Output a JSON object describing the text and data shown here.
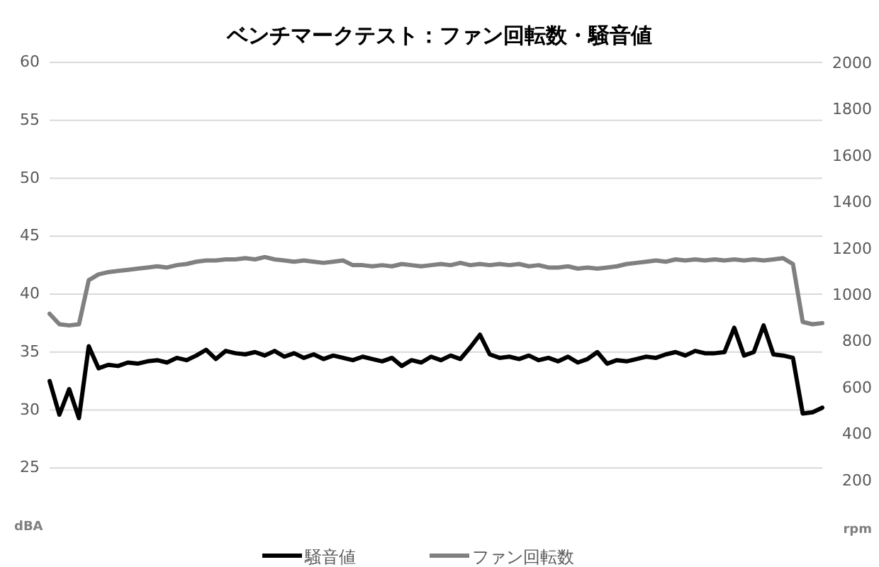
{
  "chart_data": {
    "type": "line",
    "title": "ベンチマークテスト：ファン回転数・騒音値",
    "categories": [
      null,
      null,
      null,
      null,
      null,
      null,
      null,
      null,
      null,
      null,
      null,
      null,
      null,
      null,
      null,
      null,
      null,
      null,
      null,
      null,
      null,
      null,
      null,
      null,
      null,
      null,
      null,
      null,
      null,
      null,
      null,
      null,
      null,
      null,
      null,
      null,
      null,
      null,
      null,
      null,
      null,
      null,
      null,
      null,
      null,
      null,
      null,
      null,
      null,
      null,
      null,
      null,
      null,
      null,
      null,
      null,
      null,
      null,
      null,
      null,
      null,
      null,
      null,
      null,
      null,
      null,
      null,
      null,
      null,
      null,
      null,
      null,
      null,
      null,
      null,
      null,
      null,
      null,
      null,
      null
    ],
    "ylim": [
      20,
      60
    ],
    "yticks": [
      {
        "value": 20,
        "label": "dBA"
      },
      25,
      30,
      35,
      40,
      45,
      50,
      55,
      60
    ],
    "y2lim": [
      0,
      2000
    ],
    "y2ticks": [
      {
        "value": 0,
        "label": "rpm"
      },
      200,
      400,
      600,
      800,
      1000,
      1200,
      1400,
      1600,
      1800,
      2000
    ],
    "grid": "y",
    "legend": "bottom",
    "marker": "none",
    "line_style": "solid",
    "series": [
      {
        "name": "騒音値",
        "color": "#000000",
        "values": [
          32.5,
          29.6,
          31.8,
          29.3,
          35.5,
          33.6,
          33.9,
          33.8,
          34.1,
          34.0,
          34.2,
          34.3,
          34.1,
          34.5,
          34.3,
          34.7,
          35.2,
          34.4,
          35.1,
          34.9,
          34.8,
          35.0,
          34.7,
          35.1,
          34.6,
          34.9,
          34.5,
          34.8,
          34.4,
          34.7,
          34.5,
          34.3,
          34.6,
          34.4,
          34.2,
          34.5,
          33.8,
          34.3,
          34.1,
          34.6,
          34.3,
          34.7,
          34.4,
          35.4,
          36.5,
          34.8,
          34.5,
          34.6,
          34.4,
          34.7,
          34.3,
          34.5,
          34.2,
          34.6,
          34.1,
          34.4,
          35.0,
          34.0,
          34.3,
          34.2,
          34.4,
          34.6,
          34.5,
          34.8,
          35.0,
          34.7,
          35.1,
          34.9,
          34.9,
          35.0,
          37.1,
          34.7,
          35.0,
          37.3,
          34.8,
          34.7,
          34.5,
          29.7,
          29.8,
          30.2
        ]
      },
      {
        "name": "ファン回転数",
        "color": "#808080",
        "axis": "y2",
        "values": [
          915,
          870,
          865,
          870,
          1060,
          1085,
          1095,
          1100,
          1105,
          1110,
          1115,
          1120,
          1115,
          1125,
          1130,
          1140,
          1145,
          1145,
          1150,
          1150,
          1155,
          1150,
          1160,
          1150,
          1145,
          1140,
          1145,
          1140,
          1135,
          1140,
          1145,
          1125,
          1125,
          1120,
          1125,
          1120,
          1130,
          1125,
          1120,
          1125,
          1130,
          1125,
          1135,
          1125,
          1130,
          1125,
          1130,
          1125,
          1130,
          1120,
          1125,
          1115,
          1115,
          1120,
          1110,
          1115,
          1110,
          1115,
          1120,
          1130,
          1135,
          1140,
          1145,
          1140,
          1150,
          1145,
          1150,
          1145,
          1150,
          1145,
          1150,
          1145,
          1150,
          1145,
          1150,
          1155,
          1130,
          880,
          870,
          875
        ]
      }
    ]
  }
}
